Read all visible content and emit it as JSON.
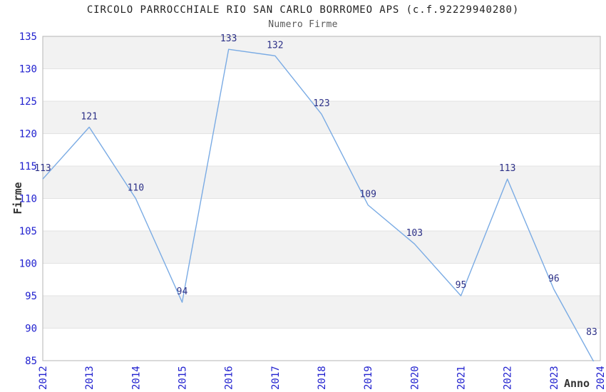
{
  "header": {
    "title": "CIRCOLO PARROCCHIALE RIO SAN CARLO BORROMEO APS (c.f.92229940280)",
    "subtitle": "Numero Firme"
  },
  "chart_data": {
    "type": "line",
    "title": "CIRCOLO PARROCCHIALE RIO SAN CARLO BORROMEO APS (c.f.92229940280)",
    "subtitle": "Numero Firme",
    "xlabel": "Anno",
    "ylabel": "Firme",
    "x": [
      2012,
      2013,
      2014,
      2015,
      2016,
      2017,
      2018,
      2019,
      2020,
      2021,
      2022,
      2023,
      2024
    ],
    "values": [
      113,
      121,
      110,
      94,
      133,
      132,
      123,
      109,
      103,
      95,
      113,
      96,
      83
    ],
    "point_labels": [
      "113",
      "121",
      "110",
      "94",
      "133",
      "132",
      "123",
      "109",
      "103",
      "95",
      "113",
      "96",
      "83"
    ],
    "yticks": [
      85,
      90,
      95,
      100,
      105,
      110,
      115,
      120,
      125,
      130,
      135
    ],
    "ylim": [
      85,
      135
    ],
    "grid": "horizontal-with-alternating-bands",
    "legend": "none",
    "x_tick_rotation_deg": 90
  },
  "colors": {
    "line": "#7aabe4",
    "tick_label": "#2121cf",
    "data_label": "#2c3087",
    "band": "#f2f2f2",
    "grid": "#e3e3e3",
    "border": "#b5b5b5",
    "title": "#222222",
    "subtitle": "#595959",
    "axis_label": "#333333",
    "background": "#ffffff"
  }
}
